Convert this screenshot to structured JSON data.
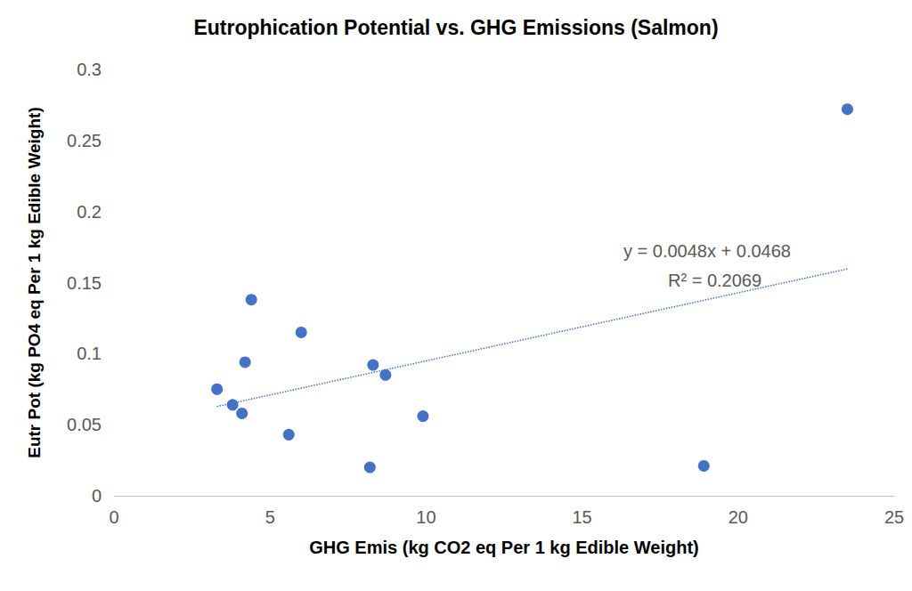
{
  "chart_data": {
    "type": "scatter",
    "title": "Eutrophication Potential vs. GHG Emissions (Salmon)",
    "x_label": "GHG Emis (kg CO2 eq Per 1 kg Edible Weight)",
    "y_label": "Eutr Pot (kg PO4 eq Per 1 kg Edible Weight)",
    "series": [
      {
        "type": "scatter",
        "color": "#4472c4",
        "marker": "circle",
        "x": [
          3.3,
          3.8,
          4.1,
          4.2,
          4.4,
          5.6,
          6.0,
          8.2,
          8.3,
          8.7,
          9.9,
          18.9,
          23.5
        ],
        "values": [
          0.075,
          0.064,
          0.058,
          0.094,
          0.138,
          0.043,
          0.115,
          0.02,
          0.092,
          0.085,
          0.056,
          0.021,
          0.272
        ]
      },
      {
        "type": "line",
        "color": "#4472c4",
        "line_style": "dotted",
        "x": [
          3.3,
          23.5
        ],
        "values": [
          0.0628,
          0.1596
        ]
      }
    ],
    "annotations": [
      "y = 0.0048x + 0.0468",
      "R² = 0.2069"
    ],
    "xlim": [
      0,
      25
    ],
    "xticks": [
      0,
      5,
      10,
      15,
      20,
      25
    ],
    "ylim": [
      0,
      0.3
    ],
    "yticks": [
      0,
      0.05,
      0.1,
      0.15,
      0.2,
      0.25,
      0.3
    ],
    "grid": false
  }
}
